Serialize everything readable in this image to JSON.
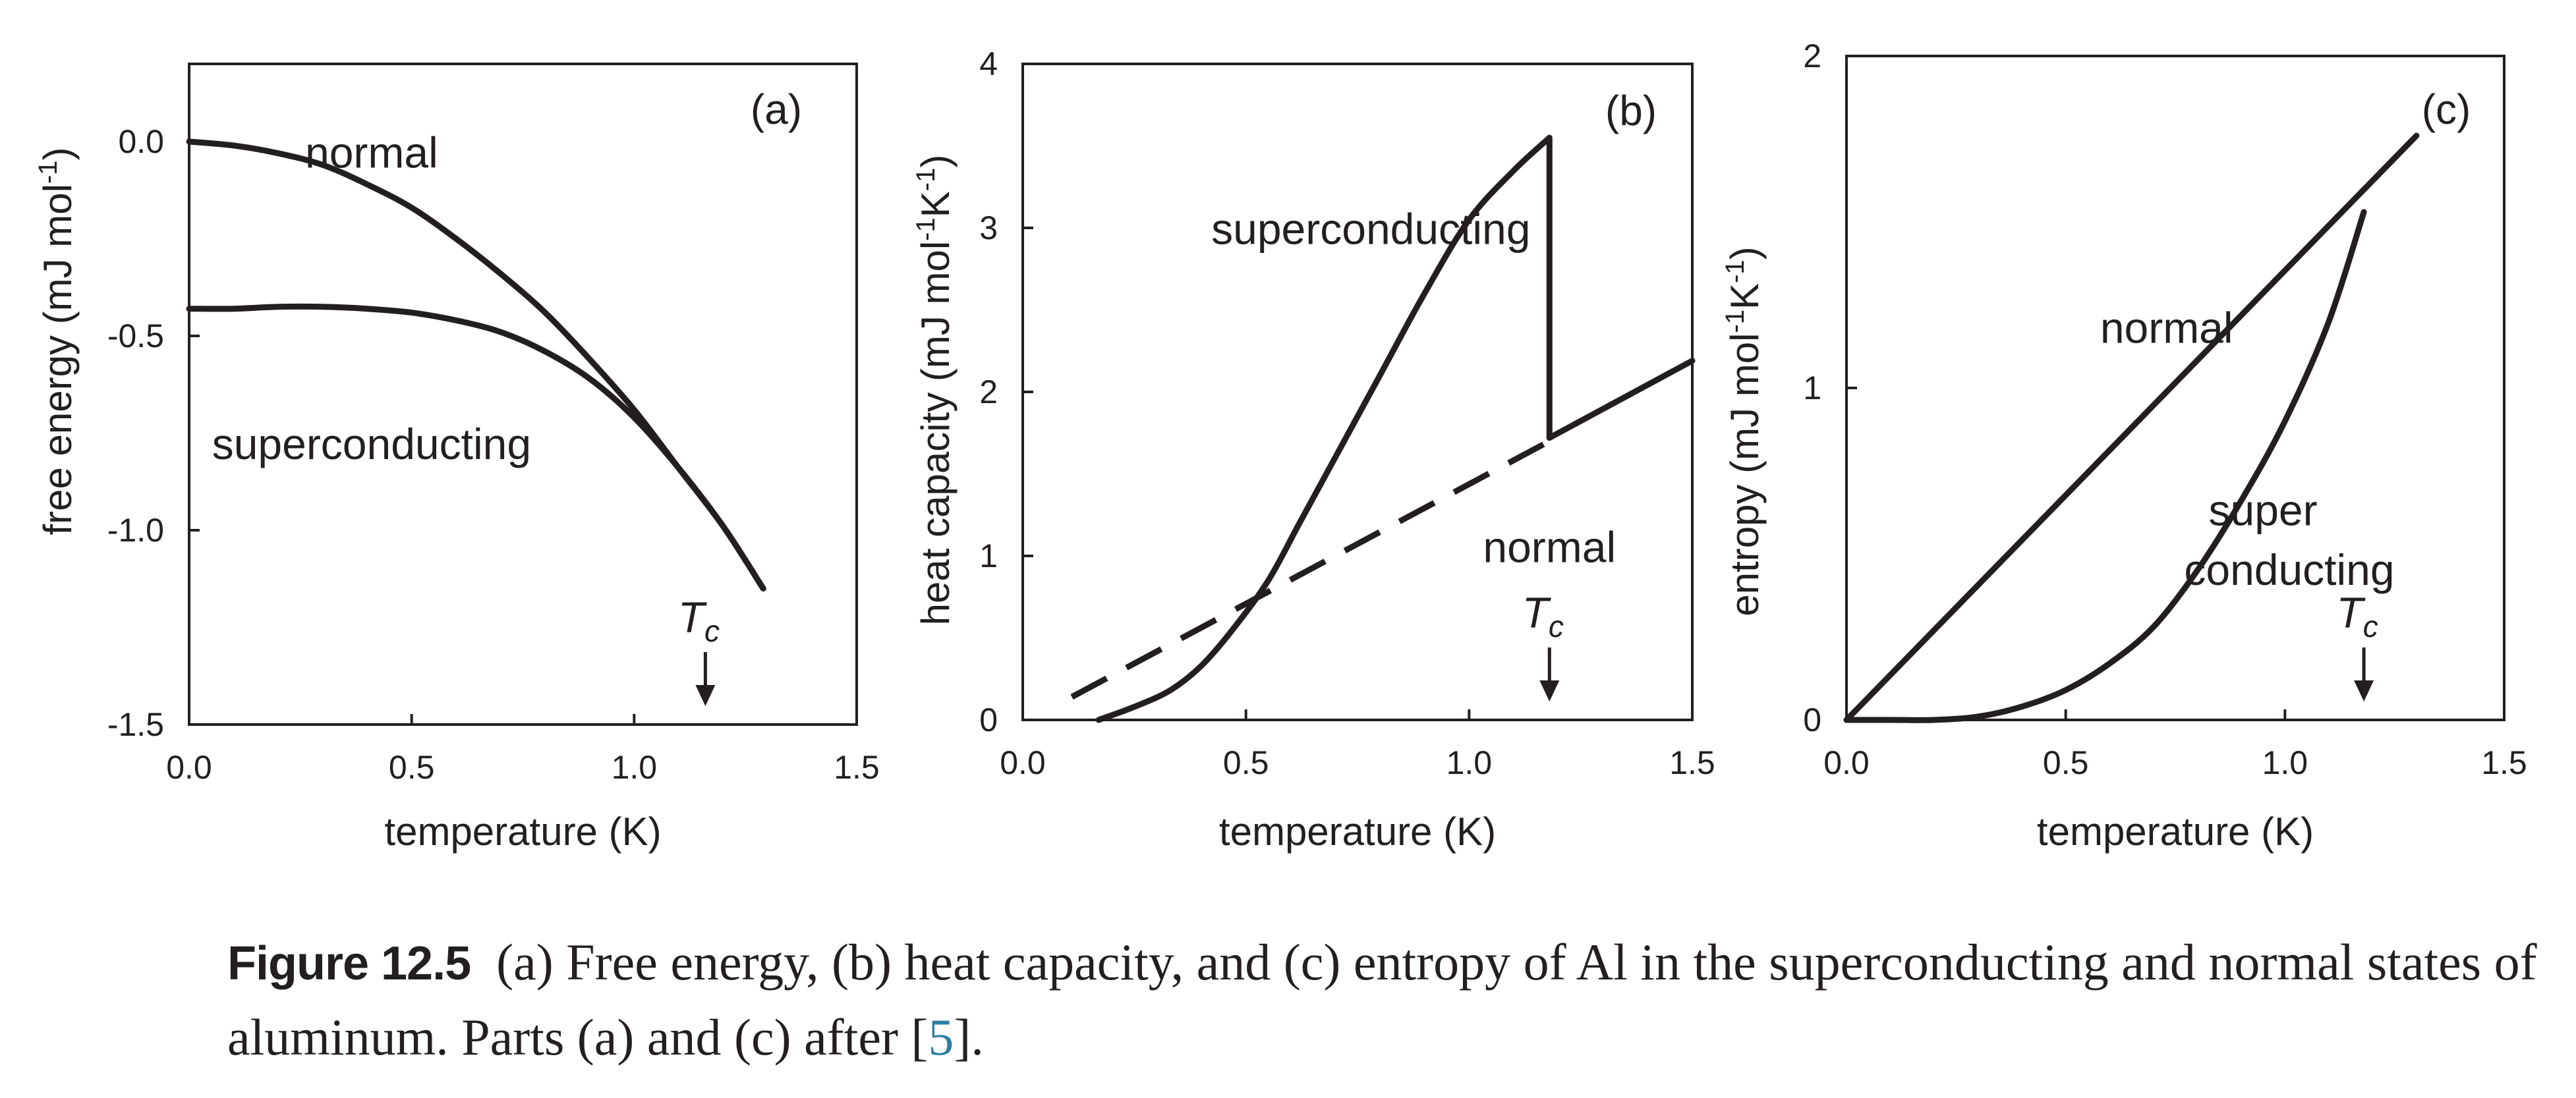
{
  "chart_data": [
    {
      "panel": "(a)",
      "type": "line",
      "xlabel": "temperature (K)",
      "ylabel": "free energy (mJ mol-1)",
      "xlim": [
        0,
        1.5
      ],
      "ylim": [
        -1.5,
        0.2
      ],
      "xticks": [
        0.0,
        0.5,
        1.0,
        1.5
      ],
      "xtick_labels": [
        "0.0",
        "0.5",
        "1.0",
        "1.5"
      ],
      "yticks": [
        0.0,
        -0.5,
        -1.0,
        -1.5
      ],
      "ytick_labels": [
        "0.0",
        "-0.5",
        "-1.0",
        "-1.5"
      ],
      "series": [
        {
          "name": "normal",
          "style": "solid",
          "x": [
            0.0,
            0.1,
            0.2,
            0.3,
            0.4,
            0.5,
            0.6,
            0.7,
            0.8,
            0.9,
            1.0,
            1.1,
            1.2,
            1.29
          ],
          "y": [
            0.0,
            -0.01,
            -0.03,
            -0.06,
            -0.11,
            -0.17,
            -0.25,
            -0.34,
            -0.44,
            -0.56,
            -0.69,
            -0.84,
            -0.99,
            -1.15
          ]
        },
        {
          "name": "superconducting",
          "style": "solid",
          "x": [
            0.0,
            0.1,
            0.2,
            0.3,
            0.4,
            0.5,
            0.6,
            0.7,
            0.8,
            0.9,
            1.0,
            1.1,
            1.2,
            1.29
          ],
          "y": [
            -0.43,
            -0.43,
            -0.425,
            -0.425,
            -0.43,
            -0.44,
            -0.46,
            -0.49,
            -0.54,
            -0.61,
            -0.71,
            -0.84,
            -0.99,
            -1.15
          ]
        }
      ],
      "annotations": [
        {
          "text": "normal",
          "x": 0.41,
          "y": -0.03
        },
        {
          "text": "superconducting",
          "x": 0.41,
          "y": -0.78
        }
      ],
      "tc": 1.16
    },
    {
      "panel": "(b)",
      "type": "line",
      "xlabel": "temperature (K)",
      "ylabel": "heat capacity (mJ mol-1K-1)",
      "xlim": [
        0,
        1.5
      ],
      "ylim": [
        0,
        4
      ],
      "xticks": [
        0.0,
        0.5,
        1.0,
        1.5
      ],
      "xtick_labels": [
        "0.0",
        "0.5",
        "1.0",
        "1.5"
      ],
      "yticks": [
        0,
        1,
        2,
        3,
        4
      ],
      "ytick_labels": [
        "0",
        "1",
        "2",
        "3",
        "4"
      ],
      "series": [
        {
          "name": "superconducting",
          "style": "solid",
          "x": [
            0.17,
            0.25,
            0.33,
            0.4,
            0.47,
            0.55,
            0.62,
            0.7,
            0.8,
            0.9,
            1.0,
            1.1,
            1.18,
            1.18
          ],
          "y": [
            0.0,
            0.08,
            0.18,
            0.33,
            0.55,
            0.85,
            1.2,
            1.6,
            2.1,
            2.6,
            3.05,
            3.35,
            3.55,
            1.72
          ]
        },
        {
          "name": "normal",
          "style": "dashed",
          "x": [
            0.11,
            1.18
          ],
          "y": [
            0.14,
            1.7
          ]
        },
        {
          "name": "normal",
          "style": "solid",
          "x": [
            1.18,
            1.5
          ],
          "y": [
            1.72,
            2.19
          ]
        }
      ],
      "annotations": [
        {
          "text": "superconducting",
          "x": 0.78,
          "y": 2.99
        },
        {
          "text": "normal",
          "x": 1.18,
          "y": 1.05
        }
      ],
      "tc": 1.18
    },
    {
      "panel": "(c)",
      "type": "line",
      "xlabel": "temperature (K)",
      "ylabel": "entropy (mJ mol-1K-1)",
      "xlim": [
        0,
        1.5
      ],
      "ylim": [
        0,
        2
      ],
      "xticks": [
        0.0,
        0.5,
        1.0,
        1.5
      ],
      "xtick_labels": [
        "0.0",
        "0.5",
        "1.0",
        "1.5"
      ],
      "yticks": [
        0,
        1,
        2
      ],
      "ytick_labels": [
        "0",
        "1",
        "2"
      ],
      "series": [
        {
          "name": "normal",
          "style": "solid",
          "x": [
            0.0,
            1.3
          ],
          "y": [
            0.0,
            1.76
          ]
        },
        {
          "name": "super conducting",
          "style": "solid",
          "x": [
            0.0,
            0.1,
            0.2,
            0.3,
            0.4,
            0.5,
            0.6,
            0.7,
            0.8,
            0.9,
            1.0,
            1.1,
            1.18
          ],
          "y": [
            0.0,
            0.0,
            0.0,
            0.01,
            0.04,
            0.09,
            0.17,
            0.28,
            0.45,
            0.66,
            0.9,
            1.2,
            1.53
          ]
        }
      ],
      "annotations": [
        {
          "text": "normal",
          "x": 0.73,
          "y": 1.18
        },
        {
          "text": "super",
          "x": 0.95,
          "y": 0.63
        },
        {
          "text": "conducting",
          "x": 1.01,
          "y": 0.45
        }
      ],
      "tc": 1.18
    }
  ],
  "tc_label": {
    "main": "T",
    "sub": "c"
  },
  "caption": {
    "label": "Figure 12.5",
    "text": "(a) Free energy, (b) heat capacity, and (c) entropy of Al in the superconducting and normal states of aluminum. Parts (a) and (c) after [",
    "ref": "5",
    "end": "]."
  }
}
